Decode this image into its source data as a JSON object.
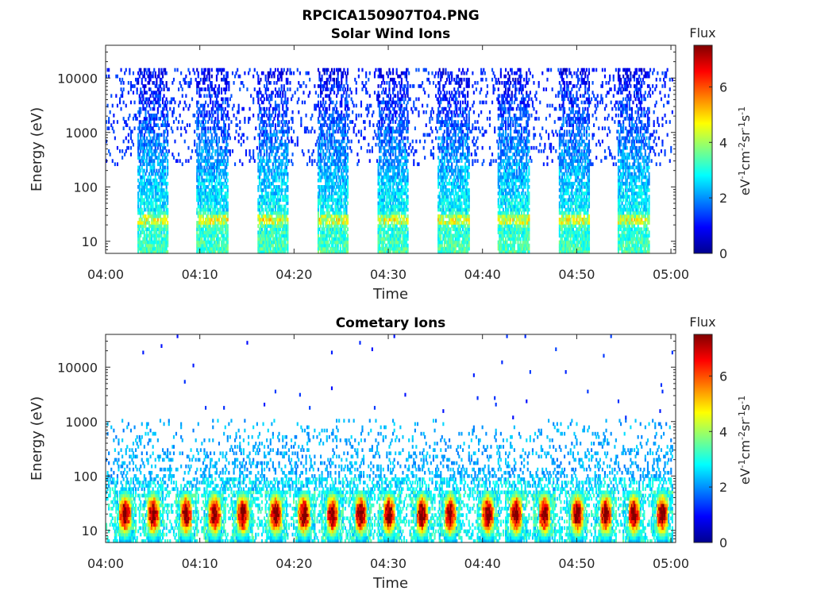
{
  "figure": {
    "title": "RPCICA150907T04.PNG"
  },
  "colormap": [
    "#00008f",
    "#0000ff",
    "#0080ff",
    "#00ffff",
    "#80ff80",
    "#ffff00",
    "#ff8000",
    "#ff0000",
    "#800000"
  ],
  "chart_data": [
    {
      "type": "heatmap",
      "title": "Solar Wind Ions",
      "xlabel": "Time",
      "ylabel": "Energy (eV)",
      "x_ticks": [
        "04:00",
        "04:10",
        "04:20",
        "04:30",
        "04:40",
        "04:50",
        "05:00"
      ],
      "x_range_minutes": [
        0,
        60.5
      ],
      "y_ticks": [
        "10",
        "100",
        "1000",
        "10000"
      ],
      "y_scale": "log",
      "y_range_eV": [
        6,
        40000
      ],
      "colorbar": {
        "title": "Flux",
        "label": "eV-1cm-2sr-1s-1",
        "ticks": [
          "0",
          "2",
          "4",
          "6"
        ],
        "range": [
          0,
          7.5
        ]
      },
      "sweeps_start_minutes": [
        3.3,
        9.6,
        16.0,
        22.4,
        28.8,
        35.2,
        41.6,
        48.0,
        54.3
      ],
      "sweep_width_minutes": 3.3,
      "typical_energy_range_eV": [
        6,
        15000
      ],
      "peak_flux_energy_eV": 25,
      "peak_flux_value": 5
    },
    {
      "type": "heatmap",
      "title": "Cometary Ions",
      "xlabel": "Time",
      "ylabel": "Energy (eV)",
      "x_ticks": [
        "04:00",
        "04:10",
        "04:20",
        "04:30",
        "04:40",
        "04:50",
        "05:00"
      ],
      "x_range_minutes": [
        0,
        60.5
      ],
      "y_ticks": [
        "10",
        "100",
        "1000",
        "10000"
      ],
      "y_scale": "log",
      "y_range_eV": [
        6,
        40000
      ],
      "colorbar": {
        "title": "Flux",
        "label": "eV-1cm-2sr-1s-1",
        "ticks": [
          "0",
          "2",
          "4",
          "6"
        ],
        "range": [
          0,
          7.5
        ]
      },
      "burst_centers_minutes": [
        2.0,
        5.0,
        8.5,
        11.5,
        14.5,
        18.0,
        21.0,
        24.0,
        27.0,
        30.0,
        33.5,
        36.5,
        40.5,
        43.5,
        46.5,
        50.0,
        53.0,
        56.0,
        59.0
      ],
      "peak_flux_energy_eV": 20,
      "peak_flux_value": 7.2
    }
  ]
}
